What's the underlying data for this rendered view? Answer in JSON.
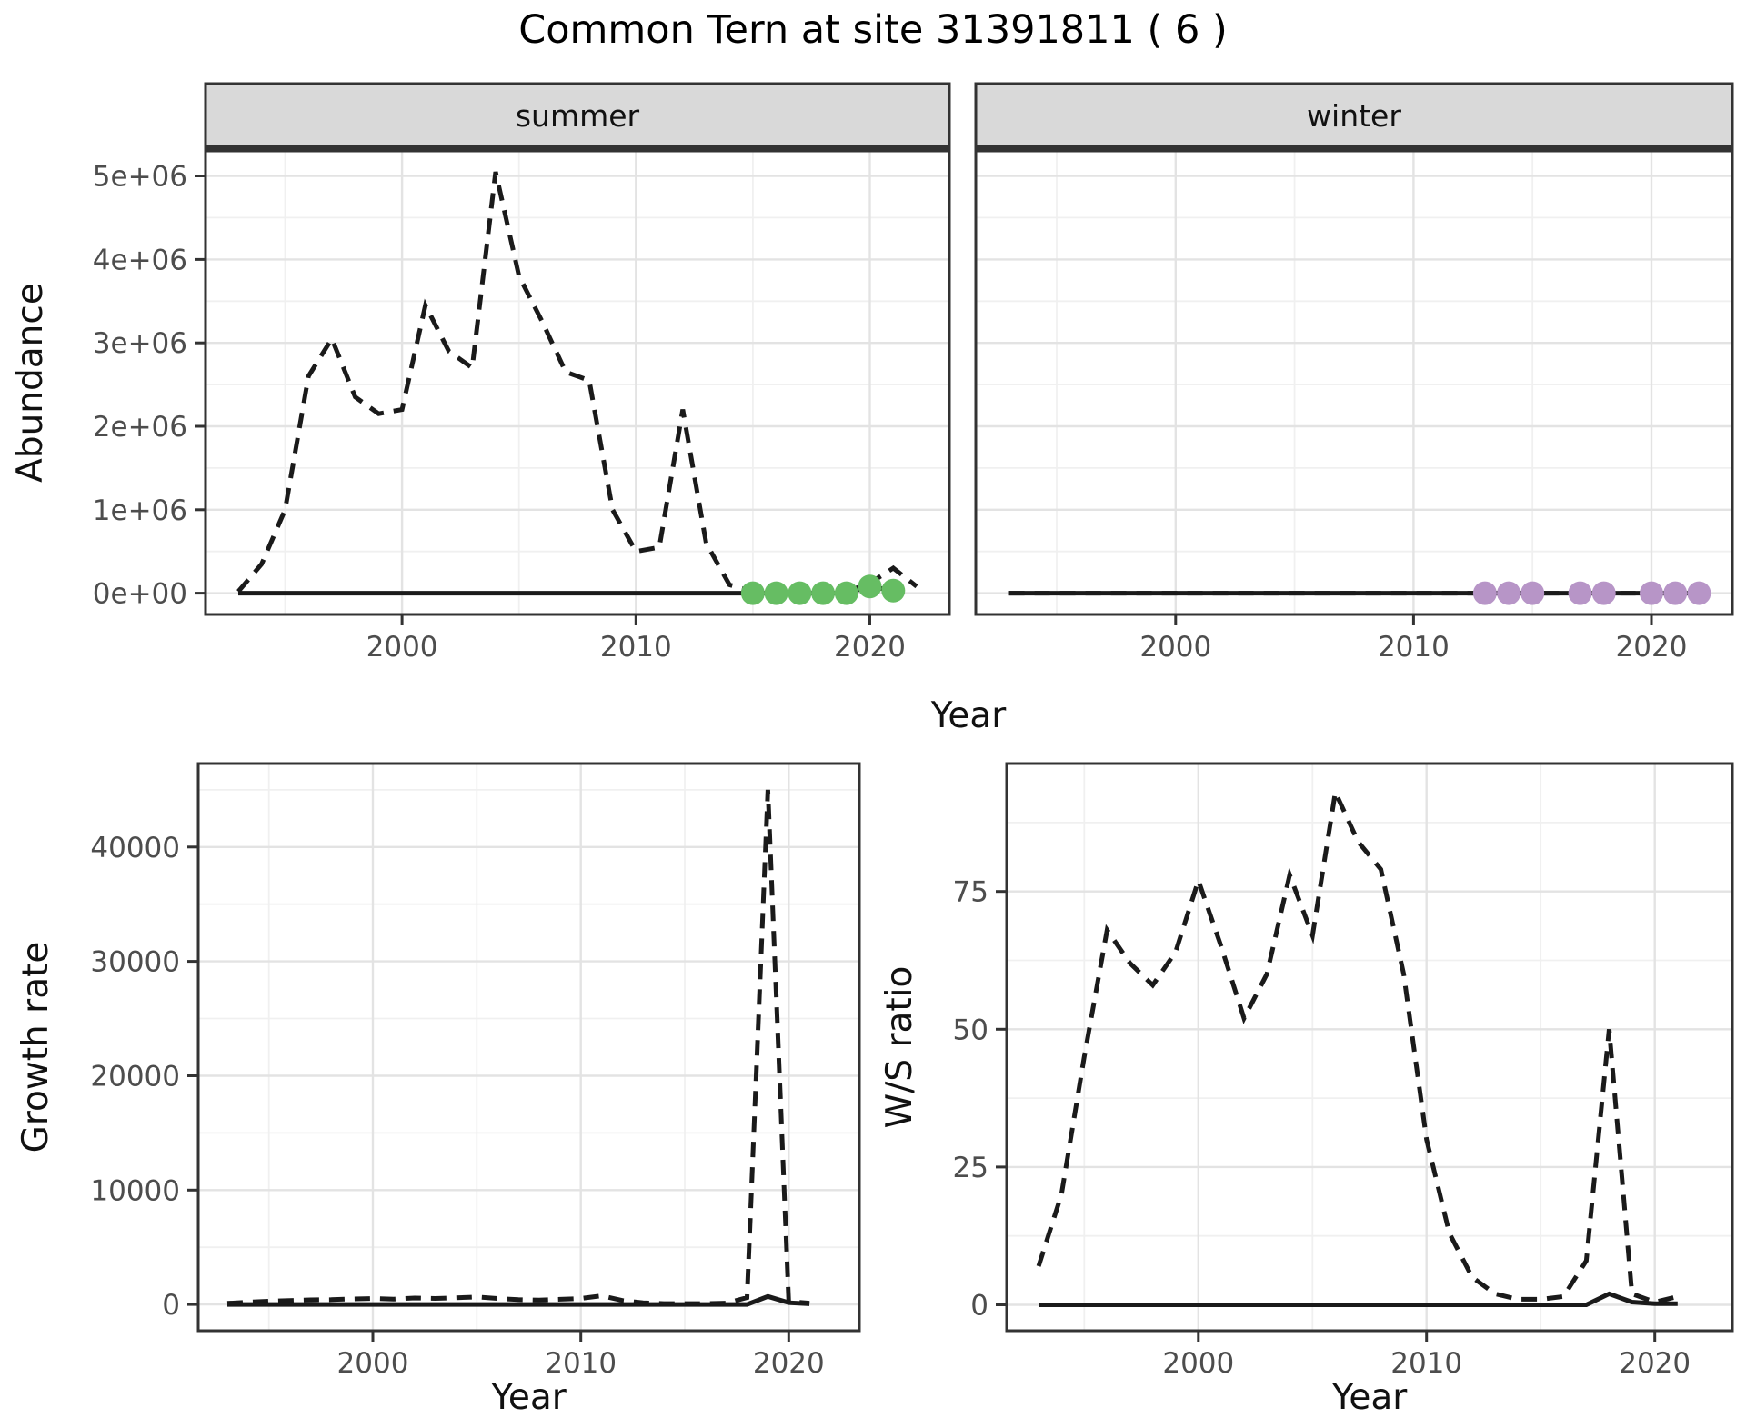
{
  "title": "Common Tern at site 31391811 ( 6 )",
  "shared_x_label": "Year",
  "colors": {
    "background": "#ffffff",
    "line": "#1a1a1a",
    "grid_major": "#e3e3e3",
    "grid_minor": "#f0f0f0",
    "panel_border": "#333333",
    "strip_fill": "#d9d9d9",
    "tick_label": "#4d4d4d",
    "axis_title": "#111111",
    "title": "#000000",
    "point_green": "#66bd63",
    "point_purple": "#b795c7"
  },
  "chart_data": [
    {
      "id": "abundance-summer",
      "type": "line",
      "facet_label": "summer",
      "ylabel": "Abundance",
      "xlabel": "Year",
      "xlim": [
        1991.6,
        2023.4
      ],
      "ylim": [
        -255000,
        5300000
      ],
      "xticks": {
        "major": [
          2000,
          2010,
          2020
        ],
        "labels": [
          "2000",
          "2010",
          "2020"
        ],
        "minor": [
          1995,
          2005,
          2015
        ]
      },
      "yticks": {
        "major": [
          0,
          1000000,
          2000000,
          3000000,
          4000000,
          5000000
        ],
        "labels": [
          "0e+00",
          "1e+06",
          "2e+06",
          "3e+06",
          "4e+06",
          "5e+06"
        ],
        "minor": [
          500000,
          1500000,
          2500000,
          3500000,
          4500000
        ]
      },
      "series": [
        {
          "name": "abundance-observed-dashed",
          "linetype": "dashed",
          "x": [
            1993,
            1994,
            1995,
            1996,
            1997,
            1998,
            1999,
            2000,
            2001,
            2002,
            2003,
            2004,
            2005,
            2006,
            2007,
            2008,
            2009,
            2010,
            2011,
            2012,
            2013,
            2014,
            2015,
            2016,
            2017,
            2018,
            2019,
            2020,
            2021,
            2022
          ],
          "y": [
            20000,
            350000,
            1000000,
            2600000,
            3050000,
            2350000,
            2150000,
            2200000,
            3450000,
            2900000,
            2700000,
            5050000,
            3800000,
            3250000,
            2650000,
            2550000,
            1000000,
            500000,
            550000,
            2200000,
            600000,
            100000,
            20000,
            20000,
            20000,
            20000,
            20000,
            120000,
            300000,
            80000
          ]
        },
        {
          "name": "abundance-model-solid",
          "linetype": "solid",
          "x": [
            1993,
            1994,
            1995,
            1996,
            1997,
            1998,
            1999,
            2000,
            2001,
            2002,
            2003,
            2004,
            2005,
            2006,
            2007,
            2008,
            2009,
            2010,
            2011,
            2012,
            2013,
            2014,
            2015,
            2016,
            2017,
            2018,
            2019,
            2020,
            2021
          ],
          "y": [
            0,
            0,
            0,
            0,
            0,
            0,
            0,
            0,
            0,
            0,
            0,
            0,
            0,
            0,
            0,
            0,
            0,
            0,
            0,
            0,
            0,
            0,
            0,
            0,
            0,
            0,
            0,
            80000,
            30000
          ]
        }
      ],
      "points": [
        {
          "name": "summer-recent-points",
          "color": "#66bd63",
          "x": [
            2015,
            2016,
            2017,
            2018,
            2019,
            2020,
            2021
          ],
          "y": [
            0,
            0,
            0,
            0,
            0,
            80000,
            30000
          ]
        }
      ]
    },
    {
      "id": "abundance-winter",
      "type": "line",
      "facet_label": "winter",
      "ylabel": "",
      "xlabel": "Year",
      "xlim": [
        1991.6,
        2023.4
      ],
      "ylim": [
        -255000,
        5300000
      ],
      "xticks": {
        "major": [
          2000,
          2010,
          2020
        ],
        "labels": [
          "2000",
          "2010",
          "2020"
        ],
        "minor": [
          1995,
          2005,
          2015
        ]
      },
      "yticks": {
        "major": [
          0,
          1000000,
          2000000,
          3000000,
          4000000,
          5000000
        ],
        "labels": [
          "0e+00",
          "1e+06",
          "2e+06",
          "3e+06",
          "4e+06",
          "5e+06"
        ],
        "minor": [
          500000,
          1500000,
          2500000,
          3500000,
          4500000
        ]
      },
      "series": [
        {
          "name": "abundance-observed-dashed",
          "linetype": "dashed",
          "x": [
            1993,
            1994,
            1995,
            1996,
            1997,
            1998,
            1999,
            2000,
            2001,
            2002,
            2003,
            2004,
            2005,
            2006,
            2007,
            2008,
            2009,
            2010,
            2011,
            2012,
            2013,
            2014,
            2015,
            2016,
            2017,
            2018,
            2019,
            2020,
            2021,
            2022
          ],
          "y": [
            0,
            0,
            0,
            0,
            0,
            0,
            0,
            0,
            0,
            0,
            0,
            0,
            0,
            0,
            0,
            0,
            0,
            0,
            0,
            0,
            0,
            0,
            0,
            0,
            0,
            0,
            0,
            0,
            0,
            0
          ]
        },
        {
          "name": "abundance-model-solid",
          "linetype": "solid",
          "x": [
            1993,
            1994,
            1995,
            1996,
            1997,
            1998,
            1999,
            2000,
            2001,
            2002,
            2003,
            2004,
            2005,
            2006,
            2007,
            2008,
            2009,
            2010,
            2011,
            2012,
            2013,
            2014,
            2015,
            2016,
            2017,
            2018,
            2019,
            2020,
            2021,
            2022
          ],
          "y": [
            0,
            0,
            0,
            0,
            0,
            0,
            0,
            0,
            0,
            0,
            0,
            0,
            0,
            0,
            0,
            0,
            0,
            0,
            0,
            0,
            0,
            0,
            0,
            0,
            0,
            0,
            0,
            0,
            0,
            0
          ]
        }
      ],
      "points": [
        {
          "name": "winter-recent-points",
          "color": "#b795c7",
          "x": [
            2013,
            2014,
            2015,
            2017,
            2018,
            2020,
            2021,
            2022
          ],
          "y": [
            0,
            0,
            0,
            0,
            0,
            0,
            0,
            0
          ]
        }
      ]
    },
    {
      "id": "growth-rate",
      "type": "line",
      "facet_label": "",
      "ylabel": "Growth rate",
      "xlabel": "Year",
      "xlim": [
        1991.6,
        2023.4
      ],
      "ylim": [
        -2300,
        47300
      ],
      "xticks": {
        "major": [
          2000,
          2010,
          2020
        ],
        "labels": [
          "2000",
          "2010",
          "2020"
        ],
        "minor": [
          1995,
          2005,
          2015
        ]
      },
      "yticks": {
        "major": [
          0,
          10000,
          20000,
          30000,
          40000
        ],
        "labels": [
          "0",
          "10000",
          "20000",
          "30000",
          "40000"
        ],
        "minor": [
          5000,
          15000,
          25000,
          35000,
          45000
        ]
      },
      "series": [
        {
          "name": "growth-observed-dashed",
          "linetype": "dashed",
          "x": [
            1993,
            1994,
            1995,
            1996,
            1997,
            1998,
            1999,
            2000,
            2001,
            2002,
            2003,
            2004,
            2005,
            2006,
            2007,
            2008,
            2009,
            2010,
            2011,
            2012,
            2013,
            2014,
            2015,
            2016,
            2017,
            2018,
            2019,
            2020,
            2021
          ],
          "y": [
            100,
            200,
            280,
            350,
            400,
            420,
            480,
            520,
            470,
            560,
            520,
            580,
            650,
            520,
            420,
            380,
            450,
            520,
            750,
            350,
            150,
            80,
            80,
            80,
            120,
            600,
            45000,
            250,
            120
          ]
        },
        {
          "name": "growth-model-solid",
          "linetype": "solid",
          "x": [
            1993,
            1994,
            1995,
            1996,
            1997,
            1998,
            1999,
            2000,
            2001,
            2002,
            2003,
            2004,
            2005,
            2006,
            2007,
            2008,
            2009,
            2010,
            2011,
            2012,
            2013,
            2014,
            2015,
            2016,
            2017,
            2018,
            2019,
            2020,
            2021
          ],
          "y": [
            0,
            0,
            0,
            0,
            0,
            0,
            0,
            0,
            0,
            0,
            0,
            0,
            0,
            0,
            0,
            0,
            0,
            0,
            0,
            0,
            0,
            0,
            0,
            0,
            0,
            0,
            700,
            150,
            50
          ]
        }
      ],
      "points": []
    },
    {
      "id": "ws-ratio",
      "type": "line",
      "facet_label": "",
      "ylabel": "W/S ratio",
      "xlabel": "Year",
      "xlim": [
        1991.6,
        2023.4
      ],
      "ylim": [
        -4.7,
        98.2
      ],
      "xticks": {
        "major": [
          2000,
          2010,
          2020
        ],
        "labels": [
          "2000",
          "2010",
          "2020"
        ],
        "minor": [
          1995,
          2005,
          2015
        ]
      },
      "yticks": {
        "major": [
          0,
          25,
          50,
          75
        ],
        "labels": [
          "0",
          "25",
          "50",
          "75"
        ],
        "minor": [
          12.5,
          37.5,
          62.5,
          87.5
        ]
      },
      "series": [
        {
          "name": "ws-observed-dashed",
          "linetype": "dashed",
          "x": [
            1993,
            1994,
            1995,
            1996,
            1997,
            1998,
            1999,
            2000,
            2001,
            2002,
            2003,
            2004,
            2005,
            2006,
            2007,
            2008,
            2009,
            2010,
            2011,
            2012,
            2013,
            2014,
            2015,
            2016,
            2017,
            2018,
            2019,
            2020,
            2021
          ],
          "y": [
            7,
            20,
            45,
            68,
            62,
            58,
            64,
            77,
            65,
            52,
            60,
            78,
            67,
            93,
            84,
            79,
            60,
            30,
            13,
            5,
            2,
            1,
            1,
            1.5,
            8,
            50,
            2,
            0.5,
            1.5
          ]
        },
        {
          "name": "ws-model-solid",
          "linetype": "solid",
          "x": [
            1993,
            1994,
            1995,
            1996,
            1997,
            1998,
            1999,
            2000,
            2001,
            2002,
            2003,
            2004,
            2005,
            2006,
            2007,
            2008,
            2009,
            2010,
            2011,
            2012,
            2013,
            2014,
            2015,
            2016,
            2017,
            2018,
            2019,
            2020,
            2021
          ],
          "y": [
            0,
            0,
            0,
            0,
            0,
            0,
            0,
            0,
            0,
            0,
            0,
            0,
            0,
            0,
            0,
            0,
            0,
            0,
            0,
            0,
            0,
            0,
            0,
            0,
            0,
            2,
            0.5,
            0.2,
            0.2
          ]
        }
      ],
      "points": []
    }
  ]
}
